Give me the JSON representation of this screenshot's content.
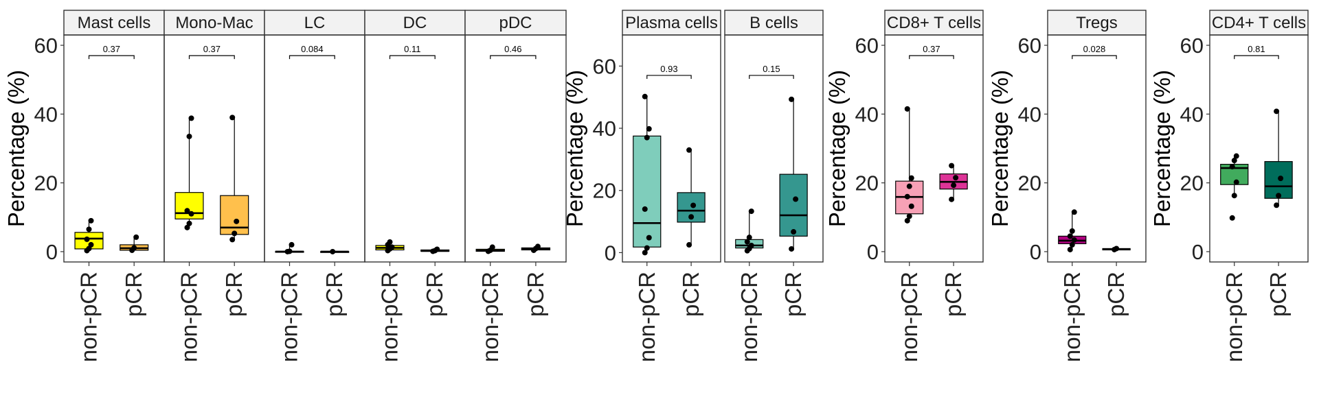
{
  "chart_data": {
    "type": "box",
    "ylabel": "Percentage (%)",
    "categories": [
      "non-pCR",
      "pCR"
    ],
    "groups": [
      {
        "ylim": [
          -3,
          63
        ],
        "yticks": [
          "0",
          "20",
          "40",
          "60"
        ],
        "ytick_values": [
          0,
          20,
          40,
          60
        ],
        "panels": [
          {
            "title": "Mast cells",
            "p_value": "0.37",
            "fills": [
              "#FFFF00",
              "#FFC04C"
            ],
            "boxes": [
              {
                "q1": 0.8,
                "median": 3.8,
                "q3": 5.6,
                "min": 0,
                "max": 9.0,
                "points": [
                  0.3,
                  0.9,
                  2.0,
                  3.6,
                  6.5,
                  9.0
                ]
              },
              {
                "q1": 0.4,
                "median": 1.0,
                "q3": 2.0,
                "min": 0.2,
                "max": 4.2,
                "points": [
                  0.4,
                  1.1,
                  4.2
                ]
              }
            ]
          },
          {
            "title": "Mono-Mac",
            "p_value": "0.37",
            "fills": [
              "#FFFF00",
              "#FFC04C"
            ],
            "boxes": [
              {
                "q1": 9.5,
                "median": 11.2,
                "q3": 17.2,
                "min": 7.0,
                "max": 38.8,
                "points": [
                  7.0,
                  8.2,
                  11.0,
                  11.9,
                  33.5,
                  38.8
                ]
              },
              {
                "q1": 5.0,
                "median": 7.0,
                "q3": 16.3,
                "min": 3.5,
                "max": 39.0,
                "points": [
                  3.5,
                  5.3,
                  8.8,
                  39.0
                ]
              }
            ]
          },
          {
            "title": "LC",
            "p_value": "0.084",
            "fills": [
              "#FFFF00",
              "#FFC04C"
            ],
            "boxes": [
              {
                "q1": 0,
                "median": 0,
                "q3": 0.1,
                "min": 0,
                "max": 2.0,
                "points": [
                  0,
                  0.1,
                  2.0
                ]
              },
              {
                "q1": 0,
                "median": 0,
                "q3": 0.05,
                "min": 0,
                "max": 0.1,
                "points": [
                  0
                ]
              }
            ]
          },
          {
            "title": "DC",
            "p_value": "0.11",
            "fills": [
              "#FFFF00",
              "#FFC04C"
            ],
            "boxes": [
              {
                "q1": 0.5,
                "median": 1.1,
                "q3": 1.8,
                "min": 0.2,
                "max": 2.8,
                "points": [
                  0.3,
                  0.8,
                  1.3,
                  2.0,
                  2.8
                ]
              },
              {
                "q1": 0.1,
                "median": 0.2,
                "q3": 0.5,
                "min": 0,
                "max": 0.8,
                "points": [
                  0.1,
                  0.3,
                  0.7
                ]
              }
            ]
          },
          {
            "title": "pDC",
            "p_value": "0.46",
            "fills": [
              "#FFFF00",
              "#FFC04C"
            ],
            "boxes": [
              {
                "q1": 0.1,
                "median": 0.3,
                "q3": 0.7,
                "min": 0,
                "max": 1.3,
                "points": [
                  0.1,
                  0.4,
                  1.3
                ]
              },
              {
                "q1": 0.5,
                "median": 0.8,
                "q3": 1.1,
                "min": 0.3,
                "max": 1.6,
                "points": [
                  0.4,
                  0.9,
                  1.5
                ]
              }
            ]
          }
        ]
      },
      {
        "ylim": [
          -3,
          70
        ],
        "yticks": [
          "0",
          "20",
          "40",
          "60"
        ],
        "ytick_values": [
          0,
          20,
          40,
          60
        ],
        "panels": [
          {
            "title": "Plasma cells",
            "p_value": "0.93",
            "fills": [
              "#7FCDBB",
              "#35978F"
            ],
            "boxes": [
              {
                "q1": 1.8,
                "median": 9.5,
                "q3": 37.5,
                "min": 0,
                "max": 50.2,
                "points": [
                  0,
                  1.5,
                  4.8,
                  14.0,
                  37.0,
                  39.8,
                  50.2
                ]
              },
              {
                "q1": 9.8,
                "median": 13.5,
                "q3": 19.3,
                "min": 2.5,
                "max": 33.0,
                "points": [
                  2.5,
                  11.5,
                  15.2,
                  33.0
                ]
              }
            ]
          },
          {
            "title": "B cells",
            "p_value": "0.15",
            "fills": [
              "#7FCDBB",
              "#35978F"
            ],
            "boxes": [
              {
                "q1": 1.5,
                "median": 2.3,
                "q3": 4.2,
                "min": 0.5,
                "max": 13.3,
                "points": [
                  0.6,
                  1.3,
                  2.3,
                  3.5,
                  4.9,
                  13.3
                ]
              },
              {
                "q1": 5.3,
                "median": 12.0,
                "q3": 25.2,
                "min": 1.2,
                "max": 49.3,
                "points": [
                  1.2,
                  6.7,
                  17.2,
                  49.3
                ]
              }
            ]
          }
        ]
      },
      {
        "ylim": [
          -3,
          63
        ],
        "yticks": [
          "0",
          "20",
          "40",
          "60"
        ],
        "ytick_values": [
          0,
          20,
          40,
          60
        ],
        "panels": [
          {
            "title": "CD8+ T cells",
            "p_value": "0.37",
            "fills": [
              "#F7A1B6",
              "#DD3497"
            ],
            "boxes": [
              {
                "q1": 11.0,
                "median": 15.9,
                "q3": 20.5,
                "min": 9.0,
                "max": 41.5,
                "points": [
                  9.0,
                  10.3,
                  13.2,
                  16.0,
                  19.0,
                  21.4,
                  41.5
                ]
              },
              {
                "q1": 18.2,
                "median": 20.3,
                "q3": 22.6,
                "min": 15.2,
                "max": 25.0,
                "points": [
                  15.2,
                  19.3,
                  21.5,
                  25.0
                ]
              }
            ]
          }
        ]
      },
      {
        "ylim": [
          -3,
          63
        ],
        "yticks": [
          "0",
          "20",
          "40",
          "60"
        ],
        "ytick_values": [
          0,
          20,
          40,
          60
        ],
        "panels": [
          {
            "title": "Tregs",
            "p_value": "0.028",
            "fills": [
              "#AE017E",
              "#49006A"
            ],
            "boxes": [
              {
                "q1": 2.3,
                "median": 3.2,
                "q3": 4.5,
                "min": 0.6,
                "max": 11.5,
                "points": [
                  0.6,
                  2.0,
                  3.4,
                  4.5,
                  6.0,
                  11.5
                ]
              },
              {
                "q1": 0.5,
                "median": 0.7,
                "q3": 0.9,
                "min": 0.4,
                "max": 1.1,
                "points": [
                  0.6,
                  0.9
                ]
              }
            ]
          }
        ]
      },
      {
        "ylim": [
          -3,
          63
        ],
        "yticks": [
          "0",
          "20",
          "40",
          "60"
        ],
        "ytick_values": [
          0,
          20,
          40,
          60
        ],
        "panels": [
          {
            "title": "CD4+ T cells",
            "p_value": "0.81",
            "fills": [
              "#41AB5D",
              "#006D5B"
            ],
            "boxes": [
              {
                "q1": 19.5,
                "median": 24.3,
                "q3": 25.4,
                "min": 16.0,
                "max": 28.0,
                "points": [
                  9.8,
                  16.3,
                  20.2,
                  24.7,
                  26.5,
                  27.8
                ]
              },
              {
                "q1": 15.5,
                "median": 19.0,
                "q3": 26.2,
                "min": 13.5,
                "max": 40.8,
                "points": [
                  13.5,
                  16.3,
                  21.3,
                  40.8
                ]
              }
            ]
          }
        ]
      }
    ]
  }
}
